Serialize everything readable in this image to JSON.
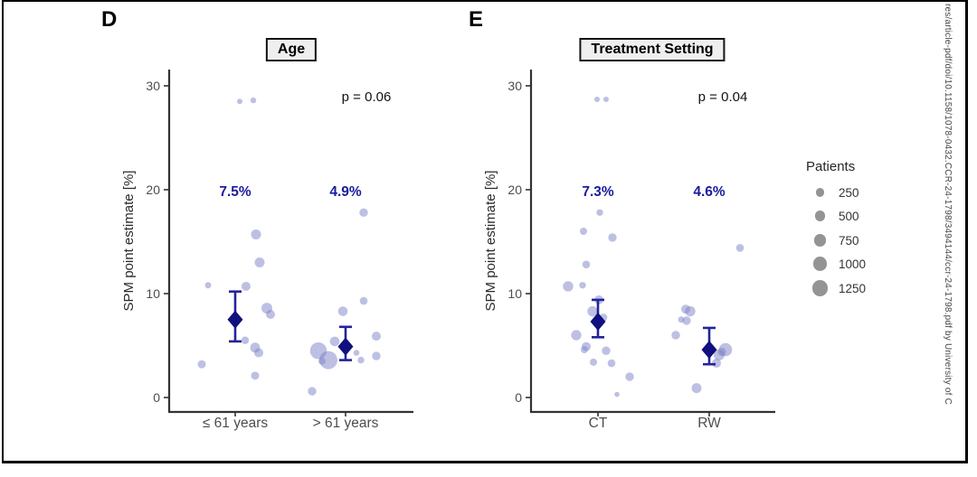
{
  "watermark": {
    "text": "res/article-pdf/doi/10.1158/1078-0432.CCR-24-1798/3494144/ccr-24-1798.pdf by University of C"
  },
  "colors": {
    "point_fill": "#7b82c8",
    "estimate_navy": "#10107f",
    "errorbar_navy": "#23239b",
    "estimate_label_navy": "#1b1b9e",
    "axis_line": "#333333",
    "tick_label_gray": "#4d4d4d",
    "p_value_black": "#111111",
    "legend_circle_gray": "#949494"
  },
  "chart_data": {
    "type": "bubble",
    "ylabel": "SPM point estimate [%]",
    "ylim": [
      0,
      30
    ],
    "yticks": [
      0,
      10,
      20,
      30
    ],
    "grid": false,
    "legend_position": "right",
    "panels": [
      {
        "letter": "D",
        "title": "Age",
        "p_value": "p = 0.06",
        "groups": [
          {
            "label": "≤ 61 years",
            "estimate": 7.5,
            "estimate_label": "7.5%",
            "ci_low": 5.4,
            "ci_high": 10.2,
            "points": [
              [
                5,
                28.5,
                3
              ],
              [
                20,
                28.6,
                3.2
              ],
              [
                23,
                15.7,
                5.5
              ],
              [
                27,
                13.0,
                5.5
              ],
              [
                -30,
                10.8,
                3.5
              ],
              [
                12,
                10.7,
                5
              ],
              [
                35,
                8.6,
                6
              ],
              [
                39,
                8.0,
                5
              ],
              [
                11,
                5.5,
                4.2
              ],
              [
                22,
                4.8,
                5.5
              ],
              [
                26,
                4.3,
                5
              ],
              [
                -37,
                3.2,
                4.5
              ],
              [
                22,
                2.1,
                4.5
              ]
            ]
          },
          {
            "label": "> 61 years",
            "estimate": 4.9,
            "estimate_label": "4.9%",
            "ci_low": 3.6,
            "ci_high": 6.8,
            "points": [
              [
                20,
                17.8,
                4.7
              ],
              [
                20,
                9.3,
                4.3
              ],
              [
                -3,
                8.3,
                5.3
              ],
              [
                34,
                5.9,
                5
              ],
              [
                -12,
                5.4,
                5.3
              ],
              [
                -30,
                4.5,
                9.3
              ],
              [
                -26,
                3.5,
                4
              ],
              [
                -19,
                3.6,
                10
              ],
              [
                12,
                4.3,
                3.3
              ],
              [
                17,
                3.6,
                3.7
              ],
              [
                34,
                4.0,
                4.7
              ],
              [
                -37,
                0.6,
                4.7
              ]
            ]
          }
        ]
      },
      {
        "letter": "E",
        "title": "Treatment Setting",
        "p_value": "p = 0.04",
        "groups": [
          {
            "label": "CT",
            "estimate": 7.3,
            "estimate_label": "7.3%",
            "ci_low": 5.8,
            "ci_high": 9.4,
            "points": [
              [
                -1,
                28.7,
                3
              ],
              [
                9,
                28.7,
                3
              ],
              [
                2,
                17.8,
                3.7
              ],
              [
                -16,
                16.0,
                4
              ],
              [
                16,
                15.4,
                4.7
              ],
              [
                -13,
                12.8,
                4.3
              ],
              [
                -33,
                10.7,
                5.7
              ],
              [
                -17,
                10.8,
                3.7
              ],
              [
                1,
                9.4,
                5
              ],
              [
                -6,
                8.3,
                5.7
              ],
              [
                6,
                7.7,
                4.3
              ],
              [
                -24,
                6.0,
                5.7
              ],
              [
                -13,
                4.9,
                5
              ],
              [
                -15,
                4.6,
                4
              ],
              [
                9,
                4.5,
                4.7
              ],
              [
                -5,
                3.4,
                4
              ],
              [
                15,
                3.3,
                4.3
              ],
              [
                35,
                2.0,
                4.7
              ],
              [
                21,
                0.3,
                2.8
              ]
            ]
          },
          {
            "label": "RW",
            "estimate": 4.6,
            "estimate_label": "4.6%",
            "ci_low": 3.2,
            "ci_high": 6.7,
            "points": [
              [
                34,
                14.4,
                4.3
              ],
              [
                -26,
                8.5,
                5
              ],
              [
                -21,
                8.3,
                5.7
              ],
              [
                -31,
                7.5,
                3.5
              ],
              [
                -25,
                7.4,
                4.7
              ],
              [
                -37,
                6.0,
                4.7
              ],
              [
                18,
                4.6,
                7.3
              ],
              [
                11,
                4.1,
                6
              ],
              [
                8,
                3.3,
                5
              ],
              [
                14,
                4.4,
                4.7
              ],
              [
                -14,
                0.9,
                5.5
              ]
            ]
          }
        ]
      }
    ],
    "legend": {
      "title": "Patients",
      "items": [
        {
          "label": "250",
          "r": 4.7
        },
        {
          "label": "500",
          "r": 5.7
        },
        {
          "label": "750",
          "r": 6.7
        },
        {
          "label": "1000",
          "r": 7.7
        },
        {
          "label": "1250",
          "r": 8.7
        }
      ]
    }
  }
}
